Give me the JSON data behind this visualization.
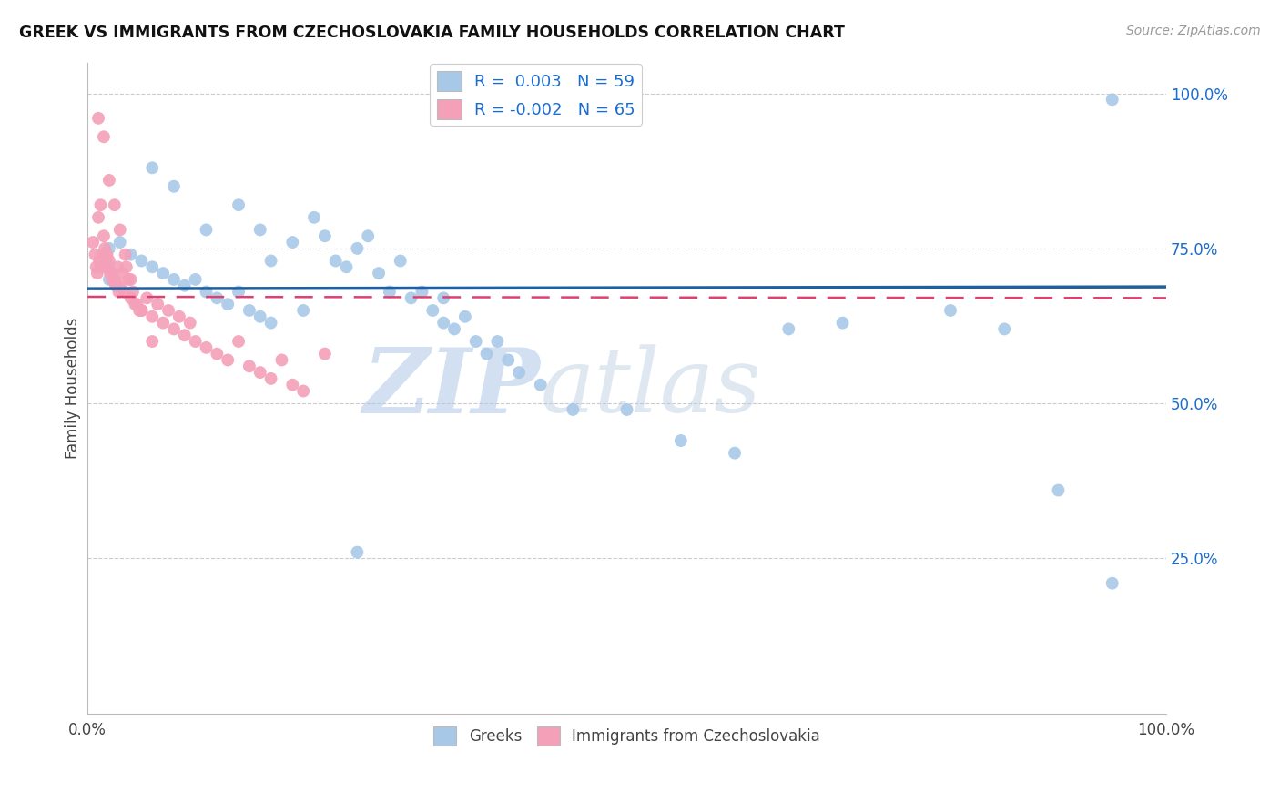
{
  "title": "GREEK VS IMMIGRANTS FROM CZECHOSLOVAKIA FAMILY HOUSEHOLDS CORRELATION CHART",
  "source": "Source: ZipAtlas.com",
  "ylabel": "Family Households",
  "legend_r_blue": " 0.003",
  "legend_n_blue": "59",
  "legend_r_pink": "-0.002",
  "legend_n_pink": "65",
  "blue_color": "#a8c8e8",
  "pink_color": "#f4a0b8",
  "trendline_blue_color": "#2060a0",
  "trendline_pink_color": "#e04070",
  "background_color": "#ffffff",
  "watermark_zip": "ZIP",
  "watermark_atlas": "atlas",
  "blue_scatter_x": [
    0.02,
    0.08,
    0.11,
    0.16,
    0.19,
    0.22,
    0.23,
    0.24,
    0.25,
    0.26,
    0.27,
    0.28,
    0.29,
    0.3,
    0.31,
    0.32,
    0.33,
    0.34,
    0.35,
    0.36,
    0.37,
    0.38,
    0.39,
    0.4,
    0.42,
    0.14,
    0.17,
    0.21,
    0.33,
    0.45,
    0.5,
    0.55,
    0.6,
    0.95,
    0.02,
    0.03,
    0.04,
    0.05,
    0.06,
    0.07,
    0.08,
    0.09,
    0.1,
    0.11,
    0.12,
    0.13,
    0.14,
    0.15,
    0.16,
    0.17,
    0.2,
    0.25,
    0.06,
    0.65,
    0.7,
    0.8,
    0.85,
    0.9,
    0.95
  ],
  "blue_scatter_y": [
    0.7,
    0.85,
    0.78,
    0.78,
    0.76,
    0.77,
    0.73,
    0.72,
    0.75,
    0.77,
    0.71,
    0.68,
    0.73,
    0.67,
    0.68,
    0.65,
    0.67,
    0.62,
    0.64,
    0.6,
    0.58,
    0.6,
    0.57,
    0.55,
    0.53,
    0.82,
    0.73,
    0.8,
    0.63,
    0.49,
    0.49,
    0.44,
    0.42,
    0.99,
    0.75,
    0.76,
    0.74,
    0.73,
    0.72,
    0.71,
    0.7,
    0.69,
    0.7,
    0.68,
    0.67,
    0.66,
    0.68,
    0.65,
    0.64,
    0.63,
    0.65,
    0.26,
    0.88,
    0.62,
    0.63,
    0.65,
    0.62,
    0.36,
    0.21
  ],
  "pink_scatter_x": [
    0.005,
    0.007,
    0.008,
    0.009,
    0.01,
    0.011,
    0.012,
    0.013,
    0.014,
    0.015,
    0.016,
    0.017,
    0.018,
    0.019,
    0.02,
    0.021,
    0.022,
    0.023,
    0.024,
    0.025,
    0.026,
    0.027,
    0.028,
    0.029,
    0.03,
    0.032,
    0.034,
    0.036,
    0.038,
    0.04,
    0.042,
    0.044,
    0.046,
    0.048,
    0.05,
    0.055,
    0.06,
    0.065,
    0.07,
    0.075,
    0.08,
    0.085,
    0.09,
    0.095,
    0.1,
    0.11,
    0.12,
    0.13,
    0.14,
    0.15,
    0.16,
    0.17,
    0.18,
    0.19,
    0.2,
    0.01,
    0.015,
    0.02,
    0.025,
    0.03,
    0.035,
    0.04,
    0.05,
    0.06,
    0.22
  ],
  "pink_scatter_y": [
    0.76,
    0.74,
    0.72,
    0.71,
    0.8,
    0.73,
    0.82,
    0.72,
    0.74,
    0.77,
    0.75,
    0.73,
    0.74,
    0.72,
    0.73,
    0.71,
    0.71,
    0.7,
    0.7,
    0.7,
    0.69,
    0.69,
    0.72,
    0.68,
    0.69,
    0.71,
    0.68,
    0.72,
    0.7,
    0.67,
    0.68,
    0.66,
    0.66,
    0.65,
    0.65,
    0.67,
    0.64,
    0.66,
    0.63,
    0.65,
    0.62,
    0.64,
    0.61,
    0.63,
    0.6,
    0.59,
    0.58,
    0.57,
    0.6,
    0.56,
    0.55,
    0.54,
    0.57,
    0.53,
    0.52,
    0.96,
    0.93,
    0.86,
    0.82,
    0.78,
    0.74,
    0.7,
    0.65,
    0.6,
    0.58
  ]
}
